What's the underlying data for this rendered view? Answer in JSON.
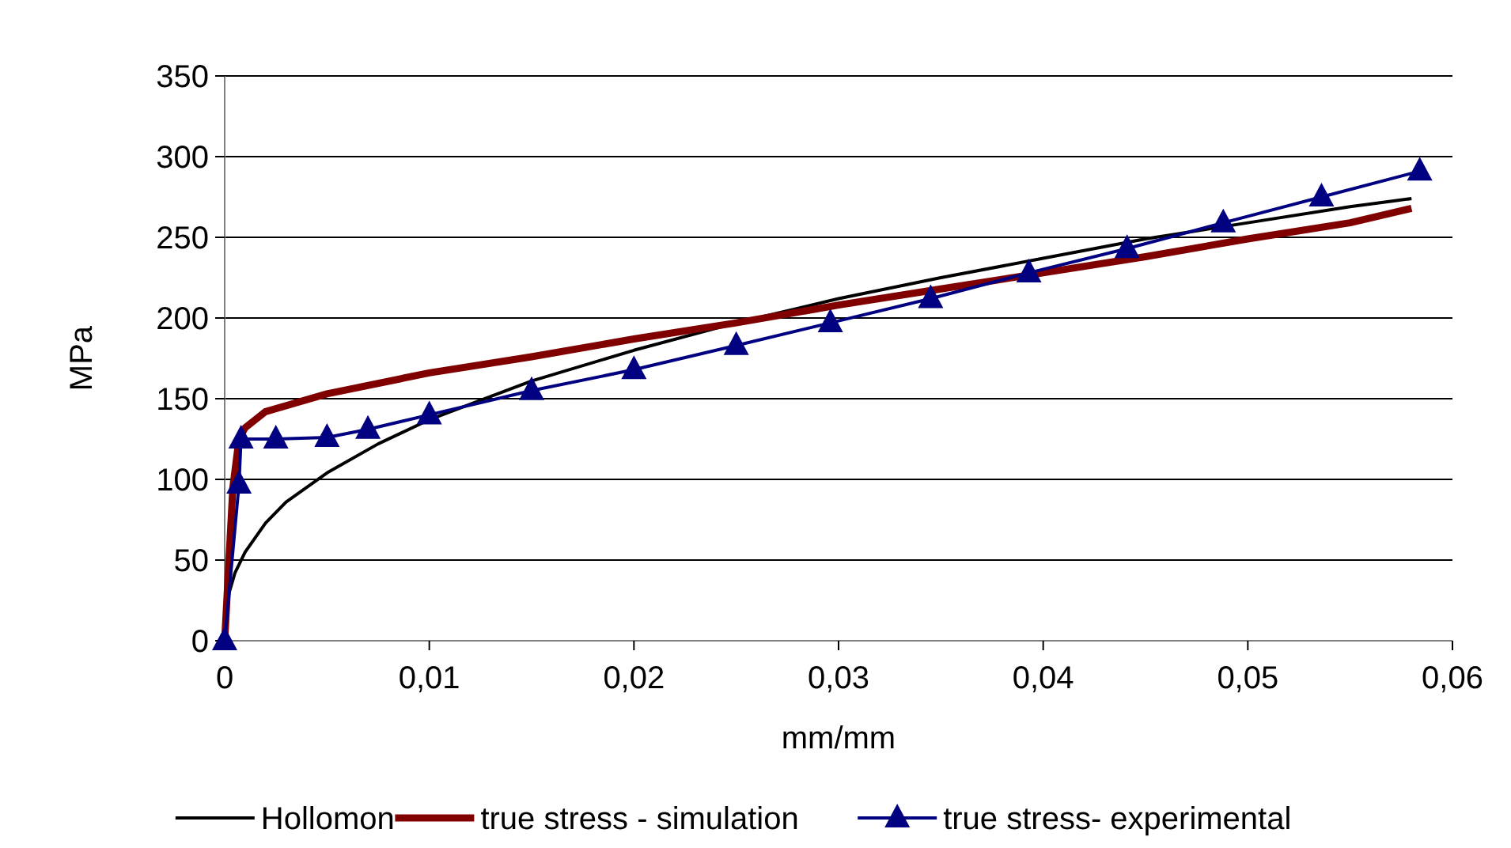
{
  "chart_data": {
    "type": "line",
    "xlabel": "mm/mm",
    "ylabel": "MPa",
    "xlim": [
      0,
      0.06
    ],
    "ylim": [
      0,
      350
    ],
    "xticks": [
      {
        "value": 0,
        "label": "0"
      },
      {
        "value": 0.01,
        "label": "0,01"
      },
      {
        "value": 0.02,
        "label": "0,02"
      },
      {
        "value": 0.03,
        "label": "0,03"
      },
      {
        "value": 0.04,
        "label": "0,04"
      },
      {
        "value": 0.05,
        "label": "0,05"
      },
      {
        "value": 0.06,
        "label": "0,06"
      }
    ],
    "yticks": [
      0,
      50,
      100,
      150,
      200,
      250,
      300,
      350
    ],
    "grid": "y",
    "legend": "bottom",
    "series": [
      {
        "name": "Hollomon",
        "color": "#000000",
        "marker": "none",
        "x": [
          0,
          0.0002,
          0.0005,
          0.001,
          0.002,
          0.003,
          0.005,
          0.0075,
          0.01,
          0.015,
          0.02,
          0.025,
          0.03,
          0.035,
          0.04,
          0.045,
          0.05,
          0.055,
          0.058
        ],
        "values": [
          0,
          29,
          42,
          55,
          73,
          86,
          104,
          122,
          137,
          161,
          180,
          197,
          212,
          225,
          237,
          249,
          259,
          269,
          274
        ]
      },
      {
        "name": "true stress - simulation",
        "color": "#800000",
        "marker": "none",
        "x": [
          0,
          0.0004,
          0.0007,
          0.001,
          0.002,
          0.005,
          0.01,
          0.015,
          0.02,
          0.025,
          0.03,
          0.035,
          0.04,
          0.045,
          0.05,
          0.055,
          0.058
        ],
        "values": [
          0,
          95,
          125,
          132,
          142,
          153,
          166,
          176,
          187,
          197,
          208,
          218,
          228,
          238,
          249,
          259,
          268
        ]
      },
      {
        "name": "true stress- experimental",
        "color": "#000080",
        "marker": "triangle",
        "x": [
          0,
          0.0007,
          0.0008,
          0.0025,
          0.005,
          0.007,
          0.01,
          0.015,
          0.02,
          0.025,
          0.0296,
          0.0345,
          0.0393,
          0.0441,
          0.0488,
          0.0536,
          0.0584
        ],
        "values": [
          0,
          97,
          125,
          125,
          126,
          131,
          140,
          155,
          168,
          183,
          197,
          212,
          228,
          243,
          259,
          275,
          291
        ]
      }
    ]
  }
}
